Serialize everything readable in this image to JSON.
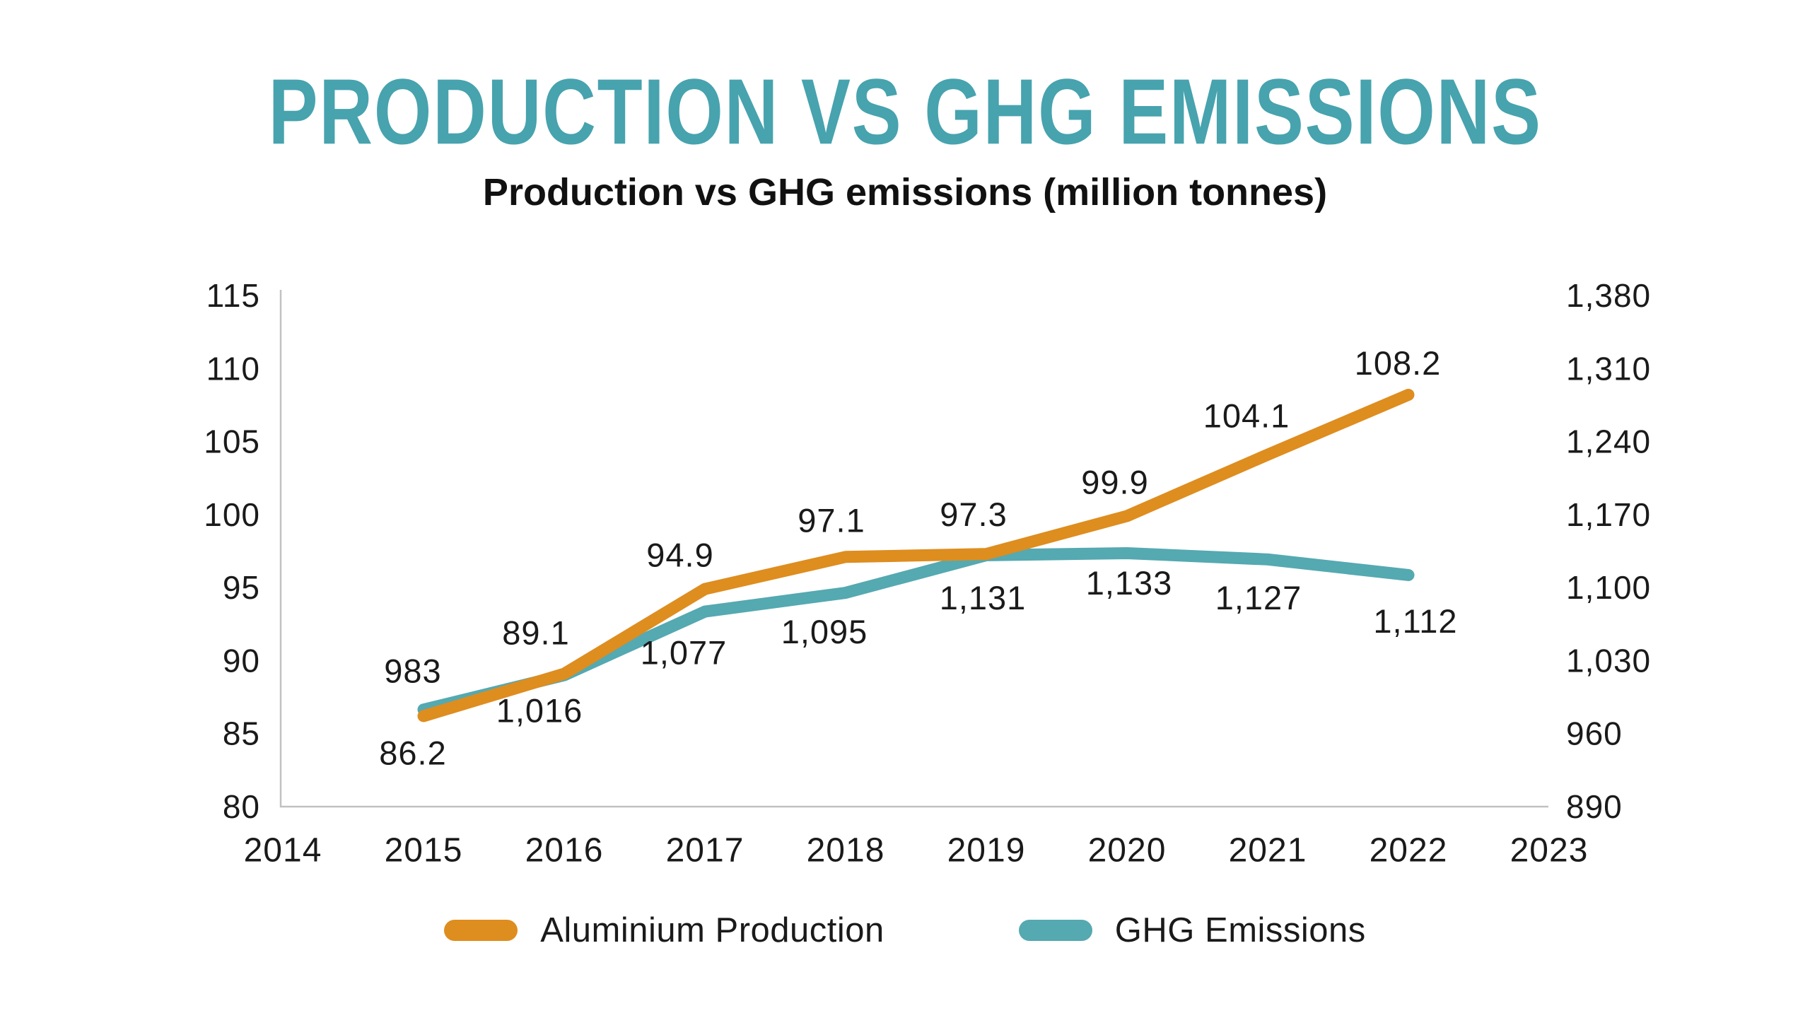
{
  "title": "PRODUCTION VS GHG EMISSIONS",
  "subtitle": "Production vs GHG emissions (million tonnes)",
  "colors": {
    "title_accent": "#47A3AE",
    "production_line": "#DE8D1F",
    "emissions_line": "#55A9B1",
    "axis_line": "#C1C1C1",
    "tick_text": "#1A1A1A"
  },
  "legend": {
    "items": [
      {
        "label": "Aluminium Production",
        "color_key": "production_line"
      },
      {
        "label": "GHG Emissions",
        "color_key": "emissions_line"
      }
    ]
  },
  "chart_data": {
    "type": "line",
    "title": "Production vs GHG emissions (million tonnes)",
    "x_axis_ticks": [
      "2014",
      "2015",
      "2016",
      "2017",
      "2018",
      "2019",
      "2020",
      "2021",
      "2022",
      "2023"
    ],
    "x_years": [
      2015,
      2016,
      2017,
      2018,
      2019,
      2020,
      2021,
      2022
    ],
    "left_axis": {
      "min": 80,
      "max": 115,
      "step": 5,
      "tick_labels": [
        "80",
        "85",
        "90",
        "95",
        "100",
        "105",
        "110",
        "115"
      ]
    },
    "right_axis": {
      "min": 890,
      "max": 1380,
      "step": 70,
      "tick_labels": [
        "890",
        "960",
        "1,030",
        "1,100",
        "1,170",
        "1,240",
        "1,310",
        "1,380"
      ]
    },
    "grid": "off",
    "legend_position": "bottom",
    "series": [
      {
        "name": "Aluminium Production",
        "axis": "left",
        "color_key": "production_line",
        "values": [
          86.2,
          89.1,
          94.9,
          97.1,
          97.3,
          99.9,
          104.1,
          108.2
        ],
        "point_labels": [
          "86.2",
          "89.1",
          "94.9",
          "97.1",
          "97.3",
          "99.9",
          "104.1",
          "108.2"
        ],
        "label_side": [
          "below",
          "above",
          "above",
          "above",
          "above",
          "above",
          "above",
          "above"
        ],
        "label_offsets": [
          [
            -15,
            52
          ],
          [
            -40,
            -58
          ],
          [
            -35,
            -48
          ],
          [
            -20,
            -52
          ],
          [
            -18,
            -56
          ],
          [
            -17,
            -48
          ],
          [
            -30,
            -55
          ],
          [
            -15,
            -45
          ]
        ]
      },
      {
        "name": "GHG Emissions",
        "axis": "right",
        "color_key": "emissions_line",
        "values": [
          983,
          1016,
          1077,
          1095,
          1131,
          1133,
          1127,
          1112
        ],
        "point_labels": [
          "983",
          "1,016",
          "1,077",
          "1,095",
          "1,131",
          "1,133",
          "1,127",
          "1,112"
        ],
        "label_side": [
          "above",
          "below",
          "below",
          "below",
          "below",
          "below",
          "below",
          "below"
        ],
        "label_offsets": [
          [
            -15,
            -55
          ],
          [
            -35,
            50
          ],
          [
            -30,
            58
          ],
          [
            -30,
            55
          ],
          [
            -5,
            60
          ],
          [
            3,
            42
          ],
          [
            -13,
            54
          ],
          [
            10,
            65
          ]
        ]
      }
    ]
  }
}
